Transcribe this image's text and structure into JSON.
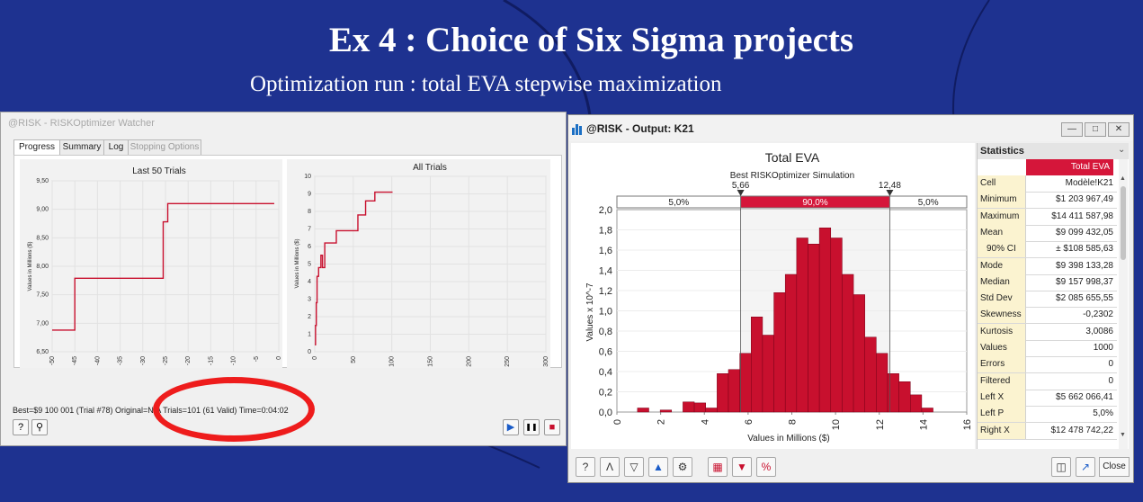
{
  "slide": {
    "title": "Ex 4 : Choice of Six Sigma projects",
    "subtitle": "Optimization run : total EVA stepwise maximization"
  },
  "watcher": {
    "title": "@RISK - RISKOptimizer Watcher",
    "tabs": [
      "Progress",
      "Summary",
      "Log",
      "Stopping Options"
    ],
    "active_tab": "Progress",
    "status": "Best=$9 100 001 (Trial #78) Original=N/A Trials=101 (61 Valid) Time=0:04:02",
    "last50": {
      "title": "Last 50 Trials",
      "ylabel": "Values in Millions ($)",
      "yticks": [
        "9,50",
        "9,00",
        "8,50",
        "8,00",
        "7,50",
        "7,00",
        "6,50"
      ],
      "xticks": [
        "-50",
        "-45",
        "-40",
        "-35",
        "-30",
        "-25",
        "-20",
        "-15",
        "-10",
        "-5",
        "0"
      ]
    },
    "alltrials": {
      "title": "All Trials",
      "ylabel": "Values in Millions ($)",
      "yticks": [
        "10",
        "9",
        "8",
        "7",
        "6",
        "5",
        "4",
        "3",
        "2",
        "1",
        "0"
      ],
      "xticks": [
        "0",
        "50",
        "100",
        "150",
        "200",
        "250",
        "300"
      ]
    }
  },
  "output": {
    "title": "@RISK - Output: K21",
    "statistics_header": "Statistics",
    "column_header": "Total EVA",
    "rows": [
      {
        "label": "Cell",
        "value": "Modèle!K21"
      },
      {
        "label": "Minimum",
        "value": "$1 203 967,49"
      },
      {
        "label": "Maximum",
        "value": "$14 411 587,98"
      },
      {
        "label": "Mean",
        "value": "$9 099 432,05"
      },
      {
        "label": "90% CI",
        "value": "± $108 585,63"
      },
      {
        "label": "Mode",
        "value": "$9 398 133,28"
      },
      {
        "label": "Median",
        "value": "$9 157 998,37"
      },
      {
        "label": "Std Dev",
        "value": "$2 085 655,55"
      },
      {
        "label": "Skewness",
        "value": "-0,2302"
      },
      {
        "label": "Kurtosis",
        "value": "3,0086"
      },
      {
        "label": "Values",
        "value": "1000"
      },
      {
        "label": "Errors",
        "value": "0"
      },
      {
        "label": "Filtered",
        "value": "0"
      },
      {
        "label": "Left X",
        "value": "$5 662 066,41"
      },
      {
        "label": "Left P",
        "value": "5,0%"
      },
      {
        "label": "Right X",
        "value": "$12 478 742,22"
      }
    ],
    "close_label": "Close"
  },
  "hist": {
    "title": "Total EVA",
    "subtitle": "Best RISKOptimizer Simulation",
    "xlabel": "Values in Millions ($)",
    "ylabel": "Values x 10^-7",
    "yticks": [
      "2,0",
      "1,8",
      "1,6",
      "1,4",
      "1,2",
      "1,0",
      "0,8",
      "0,6",
      "0,4",
      "0,2",
      "0,0"
    ],
    "xticks": [
      "0",
      "2",
      "4",
      "6",
      "8",
      "10",
      "12",
      "14",
      "16"
    ],
    "left_marker": "5,66",
    "right_marker": "12,48",
    "left_pct": "5,0%",
    "mid_pct": "90,0%",
    "right_pct": "5,0%"
  },
  "chart_data": [
    {
      "type": "line",
      "title": "Last 50 Trials",
      "ylabel": "Values in Millions ($)",
      "xlim": [
        -50,
        0
      ],
      "ylim": [
        6.5,
        9.5
      ],
      "x": [
        -50,
        -45,
        -45,
        -25.5,
        -25.5,
        -24.5,
        -24.5,
        -1
      ],
      "y": [
        6.88,
        6.88,
        7.79,
        7.79,
        8.78,
        8.78,
        9.1,
        9.1
      ]
    },
    {
      "type": "line",
      "title": "All Trials",
      "ylabel": "Values in Millions ($)",
      "xlim": [
        0,
        300
      ],
      "ylim": [
        0,
        10
      ],
      "x": [
        0,
        1,
        1,
        2,
        2,
        3,
        3,
        5,
        5,
        8,
        8,
        10,
        10,
        13,
        13,
        18,
        18,
        28,
        28,
        34,
        34,
        56,
        56,
        66,
        66,
        78,
        78,
        101
      ],
      "y": [
        0.4,
        0.4,
        1.5,
        1.5,
        2.8,
        2.8,
        4.3,
        4.3,
        4.8,
        4.8,
        5.5,
        5.5,
        4.8,
        4.8,
        6.2,
        6.2,
        6.2,
        6.2,
        6.9,
        6.9,
        6.9,
        6.9,
        7.8,
        7.8,
        8.6,
        8.6,
        9.1,
        9.1
      ]
    },
    {
      "type": "bar",
      "title": "Total EVA",
      "subtitle": "Best RISKOptimizer Simulation",
      "xlabel": "Values in Millions ($)",
      "ylabel": "Values x 10^-7",
      "xlim": [
        0,
        16
      ],
      "ylim": [
        0,
        2.0
      ],
      "bin_width": 0.52,
      "x": [
        1.2,
        1.72,
        2.24,
        2.76,
        3.28,
        3.8,
        4.32,
        4.84,
        5.36,
        5.88,
        6.4,
        6.92,
        7.44,
        7.96,
        8.48,
        9.0,
        9.52,
        10.04,
        10.56,
        11.08,
        11.6,
        12.12,
        12.64,
        13.16,
        13.68,
        14.2
      ],
      "values": [
        0.04,
        0.0,
        0.02,
        0.0,
        0.1,
        0.09,
        0.04,
        0.38,
        0.42,
        0.58,
        0.94,
        0.76,
        1.18,
        1.36,
        1.72,
        1.66,
        1.82,
        1.72,
        1.36,
        1.16,
        0.74,
        0.58,
        0.38,
        0.3,
        0.17,
        0.04
      ]
    }
  ]
}
